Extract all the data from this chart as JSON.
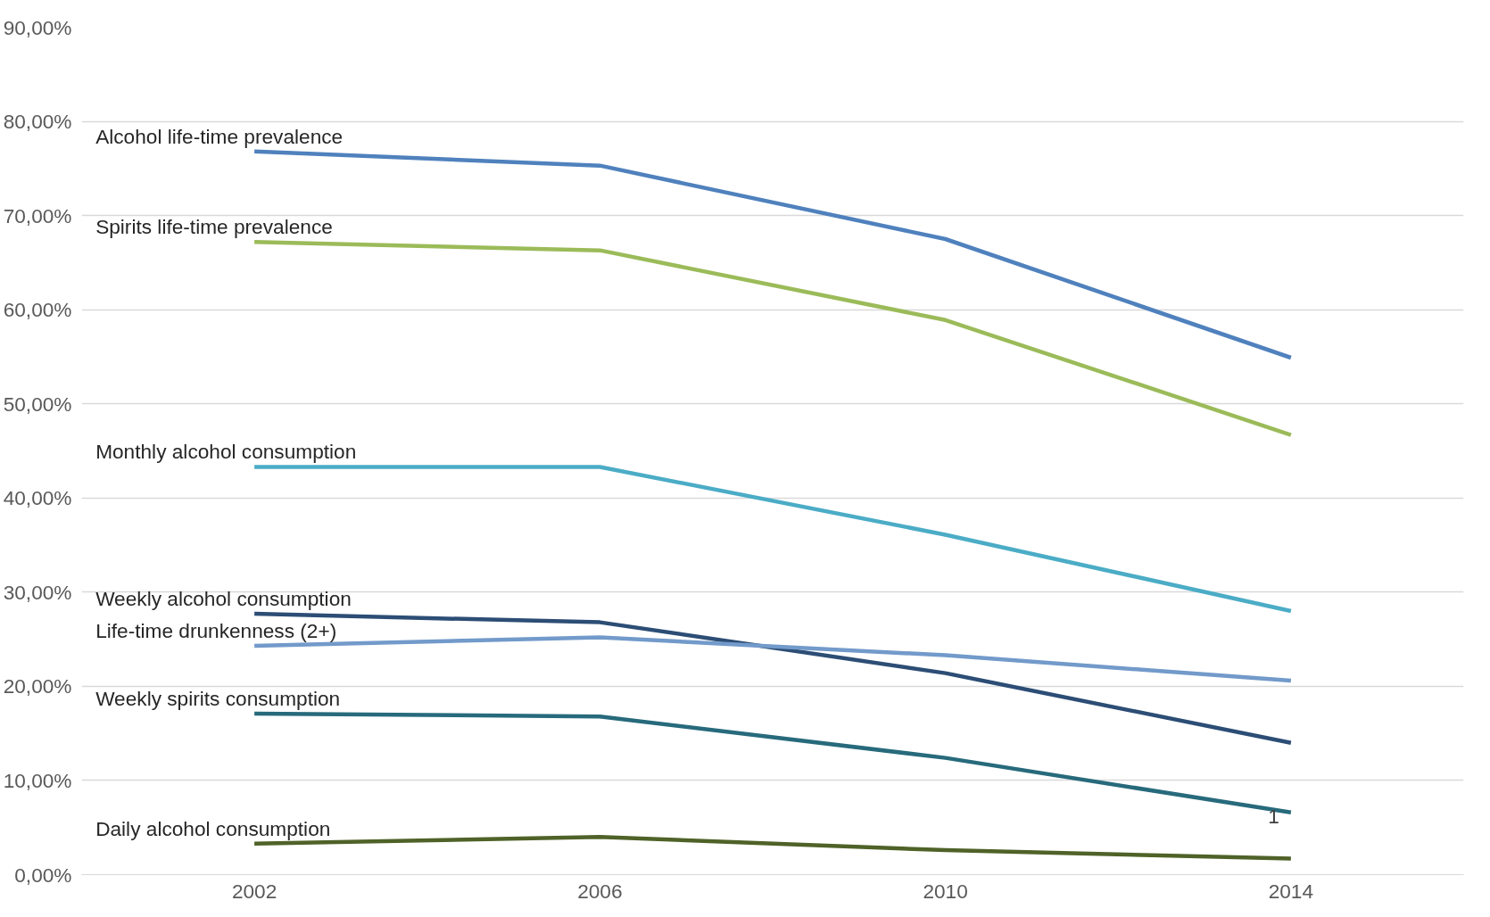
{
  "chart_data": {
    "type": "line",
    "x": [
      2002,
      2006,
      2010,
      2014
    ],
    "xlim": [
      2000,
      2016
    ],
    "xticks": [
      2002,
      2006,
      2010,
      2014
    ],
    "ylim": [
      0,
      90
    ],
    "yticks": [
      {
        "value": 0,
        "label": "0,00%"
      },
      {
        "value": 10,
        "label": "10,00%"
      },
      {
        "value": 20,
        "label": "20,00%"
      },
      {
        "value": 30,
        "label": "30,00%"
      },
      {
        "value": 40,
        "label": "40,00%"
      },
      {
        "value": 50,
        "label": "50,00%"
      },
      {
        "value": 60,
        "label": "60,00%"
      },
      {
        "value": 70,
        "label": "70,00%"
      },
      {
        "value": 80,
        "label": "80,00%"
      },
      {
        "value": 90,
        "label": "90,00%"
      }
    ],
    "grid": "y",
    "legend": false,
    "series": [
      {
        "name": "Alcohol life-time prevalence",
        "color": "#4f81bd",
        "values": [
          76.8,
          75.3,
          67.5,
          54.9
        ]
      },
      {
        "name": "Spirits life-time prevalence",
        "color": "#9bbb59",
        "values": [
          67.2,
          66.3,
          58.9,
          46.7
        ]
      },
      {
        "name": "Monthly alcohol consumption",
        "color": "#4bacc6",
        "values": [
          43.3,
          43.3,
          36.1,
          28.0
        ]
      },
      {
        "name": "Weekly alcohol consumption",
        "color": "#2c4d75",
        "values": [
          27.7,
          26.8,
          21.4,
          14.0
        ]
      },
      {
        "name": "Life-time drunkenness (2+)",
        "color": "#729aca",
        "values": [
          24.3,
          25.2,
          23.3,
          20.6
        ]
      },
      {
        "name": "Weekly spirits consumption",
        "color": "#276a7c",
        "values": [
          17.1,
          16.8,
          12.4,
          6.6
        ]
      },
      {
        "name": "Daily alcohol consumption",
        "color": "#4f6228",
        "values": [
          3.3,
          4.0,
          2.6,
          1.7
        ]
      }
    ],
    "annotations": [
      {
        "text": "1",
        "x": 2013.8,
        "y": 6.2
      }
    ]
  }
}
